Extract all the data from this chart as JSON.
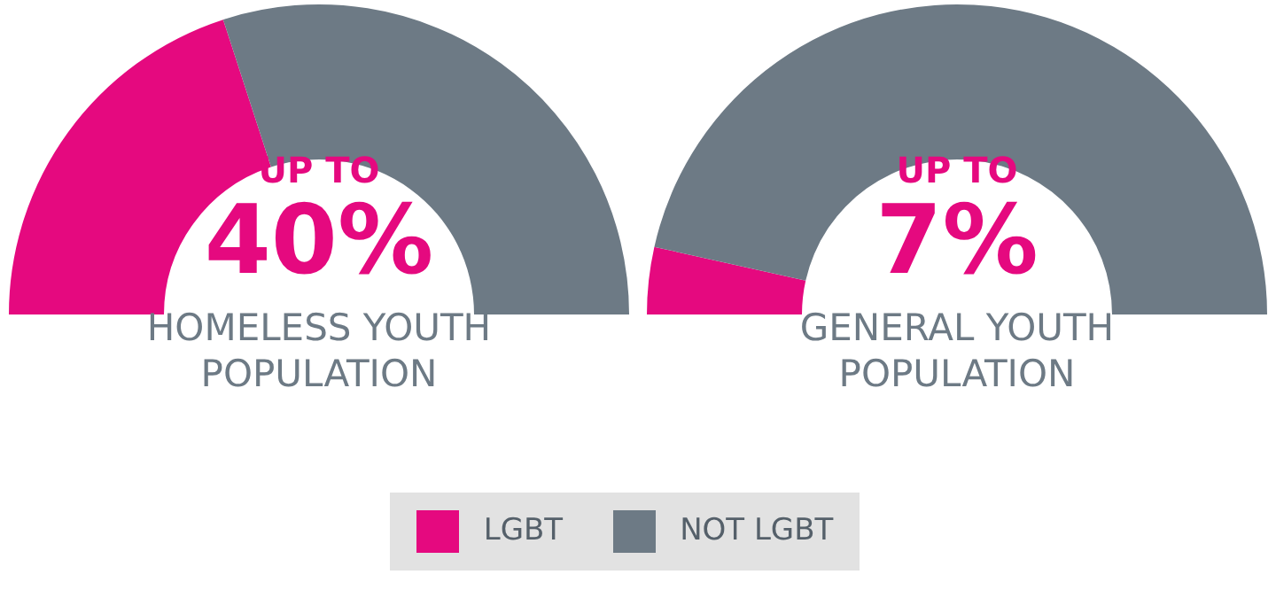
{
  "chart_data": [
    {
      "type": "donut",
      "categories": [
        "LGBT",
        "NOT LGBT"
      ],
      "values": [
        40,
        60
      ],
      "colors": [
        "#e5097f",
        "#6d7a85"
      ],
      "annotations": [
        "UP TO",
        "40%"
      ],
      "xlabel": "HOMELESS YOUTH POPULATION",
      "legend": "bottom"
    },
    {
      "type": "donut",
      "categories": [
        null,
        null
      ],
      "values": [
        7,
        93
      ],
      "colors": [
        "#e5097f",
        "#6d7a85"
      ],
      "annotations": [
        "UP TO",
        "7%"
      ],
      "xlabel": "GENERAL YOUTH POPULATION"
    }
  ]
}
